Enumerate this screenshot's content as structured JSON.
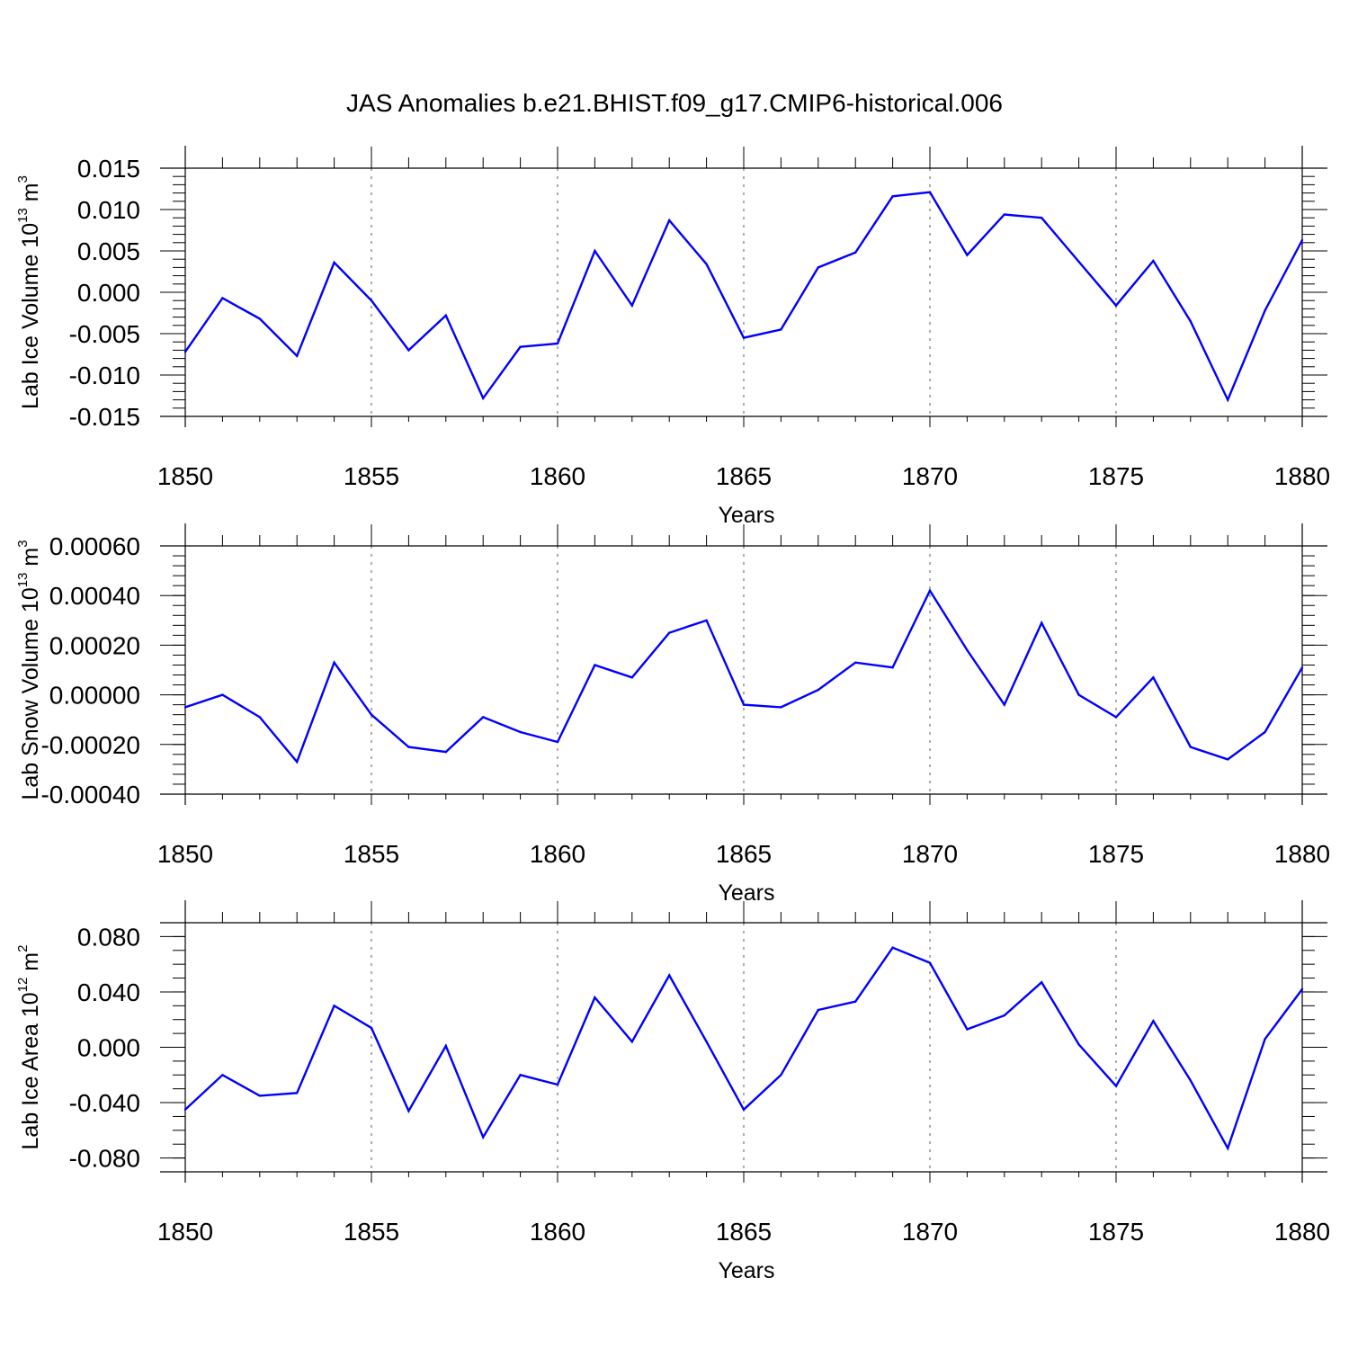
{
  "title": "JAS Anomalies b.e21.BHIST.f09_g17.CMIP6-historical.006",
  "chart_data": [
    {
      "type": "line",
      "ylabel": "Lab Ice Volume 10",
      "ylabel_exp": "13",
      "ylabel_unit": " m",
      "ylabel_unit_exp": "3",
      "xlabel": "Years",
      "xlim": [
        1850,
        1880
      ],
      "ylim": [
        -0.015,
        0.015
      ],
      "xticks": [
        1850,
        1855,
        1860,
        1865,
        1870,
        1875,
        1880
      ],
      "xtick_labels": [
        "1850",
        "1855",
        "1860",
        "1865",
        "1870",
        "1875",
        "1880"
      ],
      "yticks": [
        -0.015,
        -0.01,
        -0.005,
        0,
        0.005,
        0.01,
        0.015
      ],
      "ytick_labels": [
        "-0.015",
        "-0.010",
        "-0.005",
        "0.000",
        "0.005",
        "0.010",
        "0.015"
      ],
      "yminor_step": 0.001,
      "color": "#0000ff",
      "x": [
        1850,
        1851,
        1852,
        1853,
        1854,
        1855,
        1856,
        1857,
        1858,
        1859,
        1860,
        1861,
        1862,
        1863,
        1864,
        1865,
        1866,
        1867,
        1868,
        1869,
        1870,
        1871,
        1872,
        1873,
        1874,
        1875,
        1876,
        1877,
        1878,
        1879,
        1880
      ],
      "values": [
        -0.0072,
        -0.0007,
        -0.0032,
        -0.0077,
        0.0036,
        -0.001,
        -0.007,
        -0.0028,
        -0.0128,
        -0.0066,
        -0.0062,
        0.005,
        -0.0016,
        0.0087,
        0.0034,
        -0.0055,
        -0.0045,
        0.003,
        0.0048,
        0.0116,
        0.0121,
        0.0045,
        0.0094,
        0.009,
        0.0037,
        -0.0016,
        0.0038,
        -0.0035,
        -0.013,
        -0.0022,
        0.0063
      ]
    },
    {
      "type": "line",
      "ylabel": "Lab Snow Volume 10",
      "ylabel_exp": "13",
      "ylabel_unit": " m",
      "ylabel_unit_exp": "3",
      "xlabel": "Years",
      "xlim": [
        1850,
        1880
      ],
      "ylim": [
        -0.0004,
        0.0006
      ],
      "xticks": [
        1850,
        1855,
        1860,
        1865,
        1870,
        1875,
        1880
      ],
      "xtick_labels": [
        "1850",
        "1855",
        "1860",
        "1865",
        "1870",
        "1875",
        "1880"
      ],
      "yticks": [
        -0.0004,
        -0.0002,
        0,
        0.0002,
        0.0004,
        0.0006
      ],
      "ytick_labels": [
        "-0.00040",
        "-0.00020",
        "0.00000",
        "0.00020",
        "0.00040",
        "0.00060"
      ],
      "yminor_step": 4e-05,
      "color": "#0000ff",
      "x": [
        1850,
        1851,
        1852,
        1853,
        1854,
        1855,
        1856,
        1857,
        1858,
        1859,
        1860,
        1861,
        1862,
        1863,
        1864,
        1865,
        1866,
        1867,
        1868,
        1869,
        1870,
        1871,
        1872,
        1873,
        1874,
        1875,
        1876,
        1877,
        1878,
        1879,
        1880
      ],
      "values": [
        -5e-05,
        0.0,
        -9e-05,
        -0.00027,
        0.00013,
        -8e-05,
        -0.00021,
        -0.00023,
        -9e-05,
        -0.00015,
        -0.00019,
        0.00012,
        7e-05,
        0.00025,
        0.0003,
        -4e-05,
        -5e-05,
        2e-05,
        0.00013,
        0.00011,
        0.00042,
        0.00018,
        -4e-05,
        0.00029,
        0.0,
        -9e-05,
        7e-05,
        -0.00021,
        -0.00026,
        -0.00015,
        0.00011
      ]
    },
    {
      "type": "line",
      "ylabel": "Lab Ice Area 10",
      "ylabel_exp": "12",
      "ylabel_unit": " m",
      "ylabel_unit_exp": "2",
      "xlabel": "Years",
      "xlim": [
        1850,
        1880
      ],
      "ylim": [
        -0.09,
        0.09
      ],
      "xticks": [
        1850,
        1855,
        1860,
        1865,
        1870,
        1875,
        1880
      ],
      "xtick_labels": [
        "1850",
        "1855",
        "1860",
        "1865",
        "1870",
        "1875",
        "1880"
      ],
      "yticks": [
        -0.08,
        -0.04,
        0,
        0.04,
        0.08
      ],
      "ytick_labels": [
        "-0.080",
        "-0.040",
        "0.000",
        "0.040",
        "0.080"
      ],
      "yminor_step": 0.01,
      "color": "#0000ff",
      "x": [
        1850,
        1851,
        1852,
        1853,
        1854,
        1855,
        1856,
        1857,
        1858,
        1859,
        1860,
        1861,
        1862,
        1863,
        1864,
        1865,
        1866,
        1867,
        1868,
        1869,
        1870,
        1871,
        1872,
        1873,
        1874,
        1875,
        1876,
        1877,
        1878,
        1879,
        1880
      ],
      "values": [
        -0.045,
        -0.02,
        -0.035,
        -0.033,
        0.03,
        0.014,
        -0.046,
        0.001,
        -0.065,
        -0.02,
        -0.027,
        0.036,
        0.004,
        0.052,
        0.004,
        -0.045,
        -0.02,
        0.027,
        0.033,
        0.072,
        0.061,
        0.013,
        0.023,
        0.047,
        0.002,
        -0.028,
        0.019,
        -0.024,
        -0.073,
        0.006,
        0.042
      ]
    }
  ]
}
